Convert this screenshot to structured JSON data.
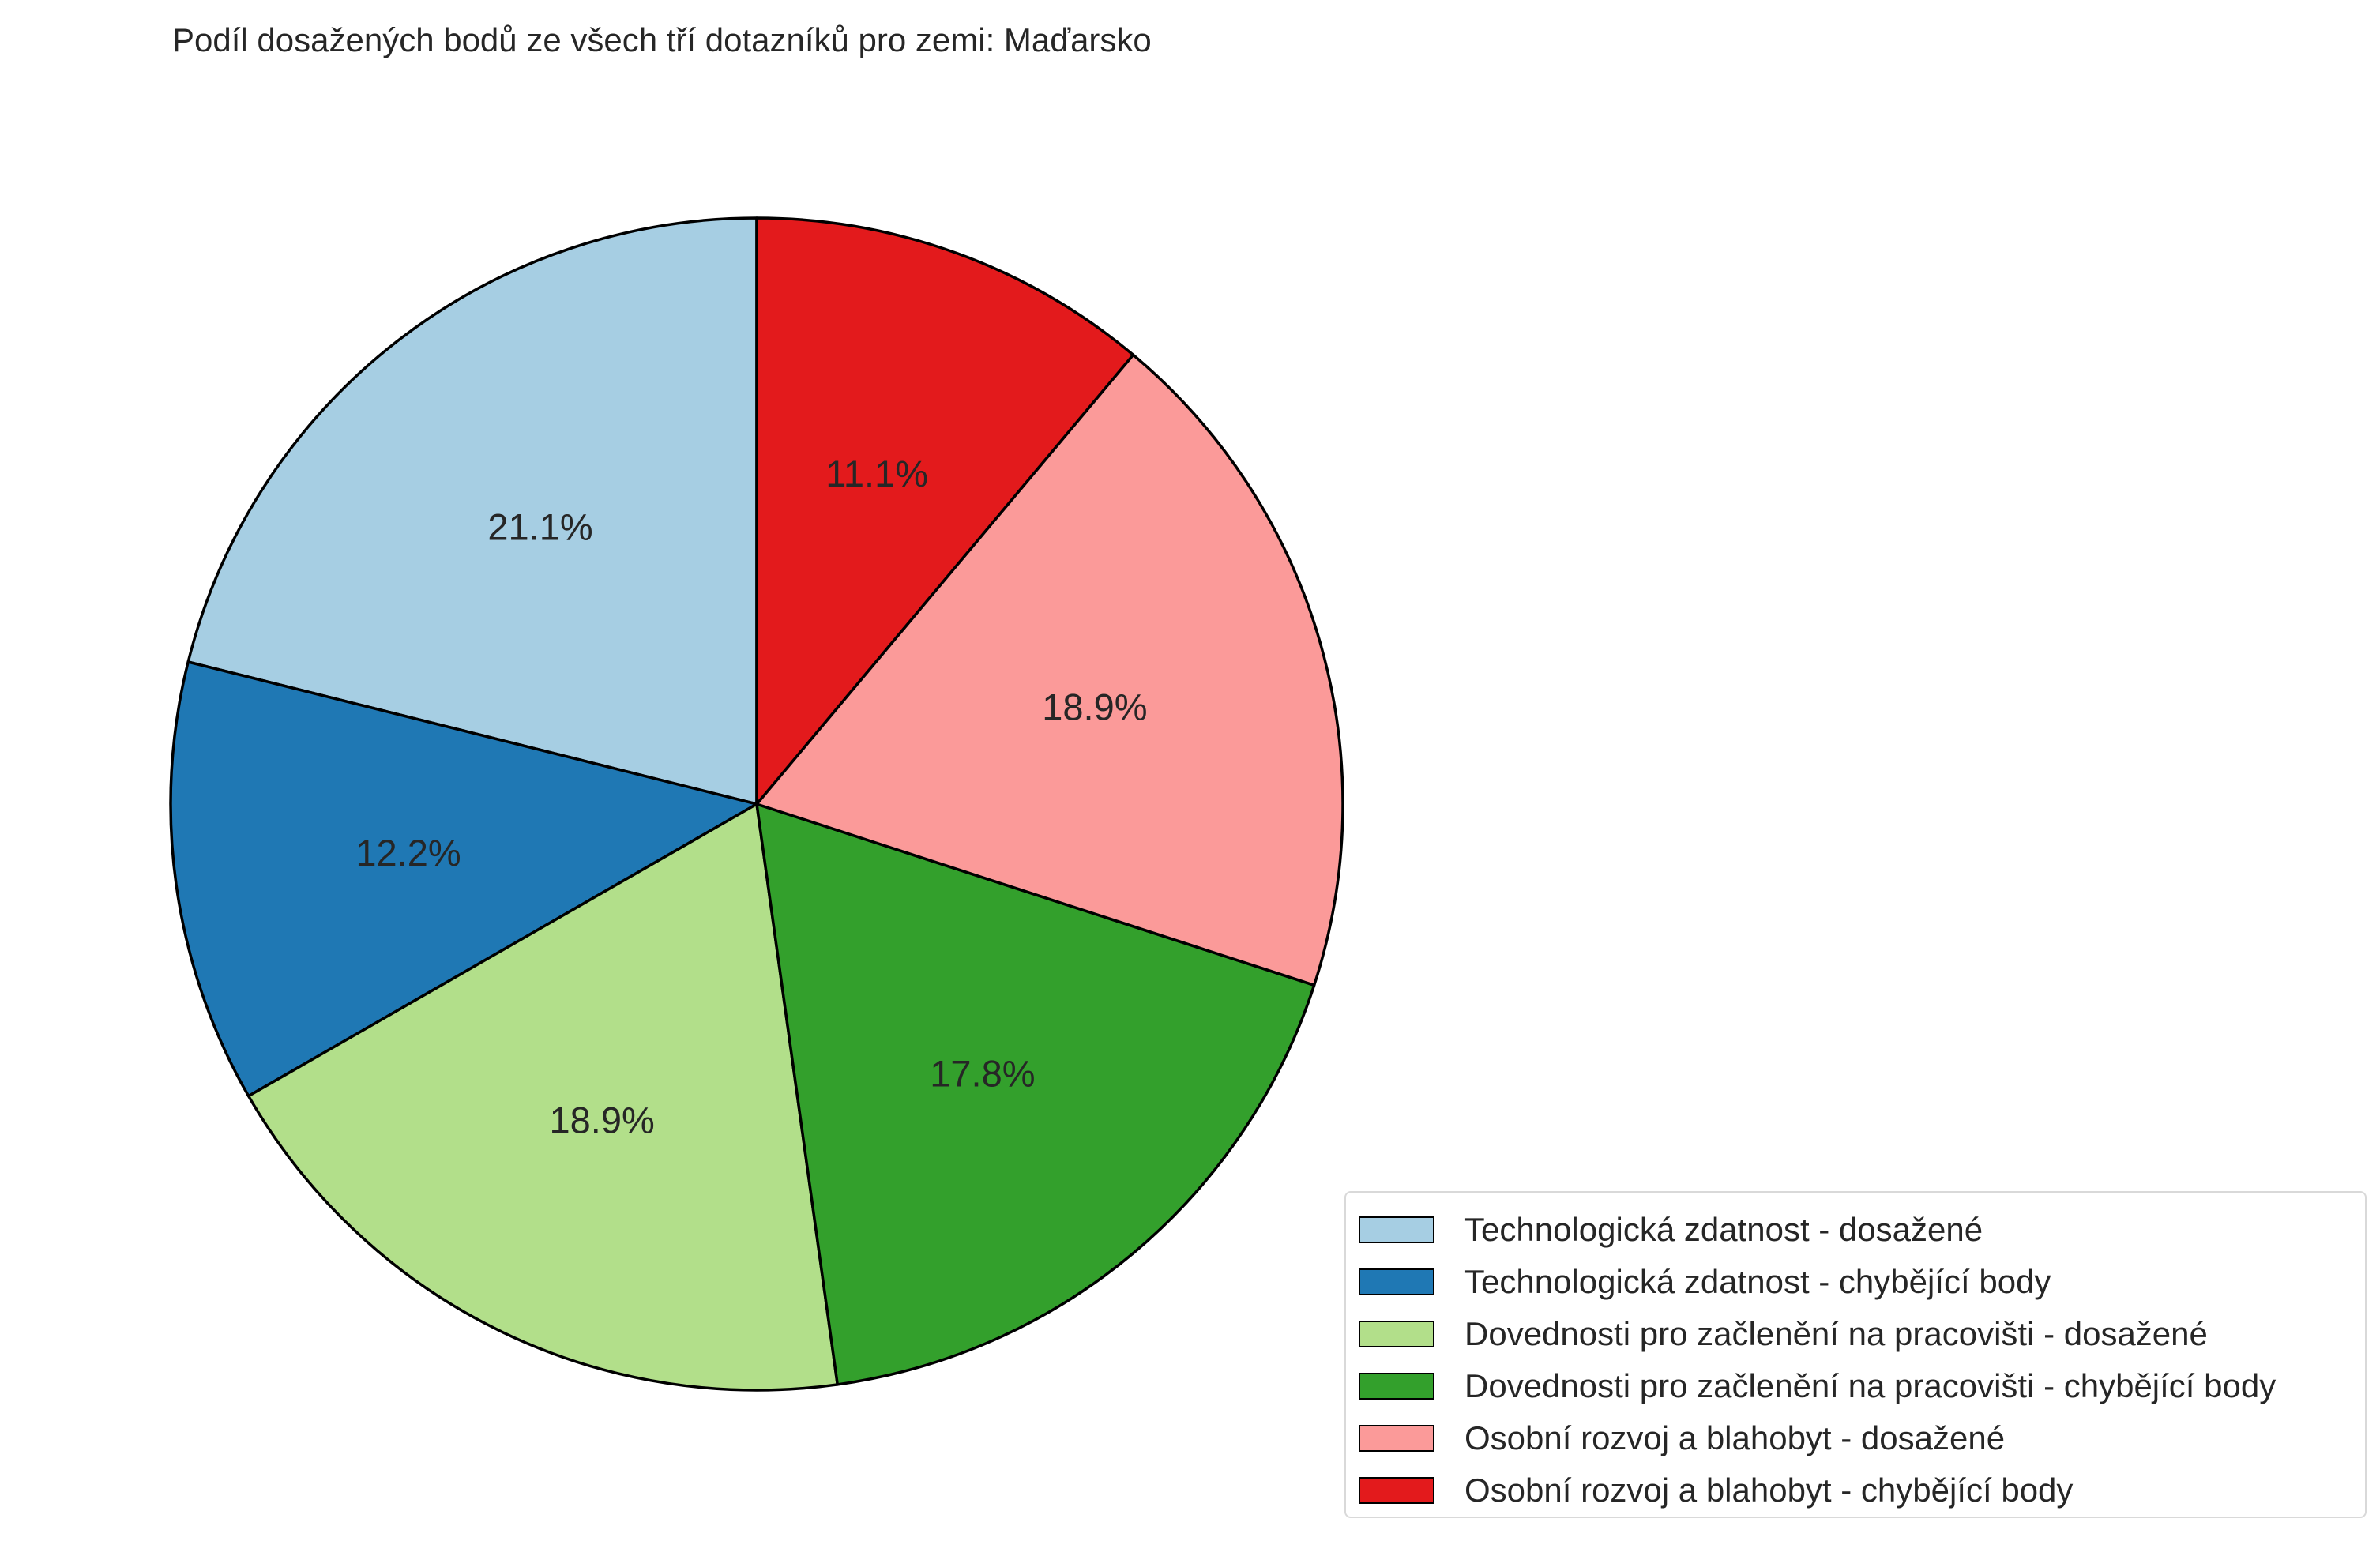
{
  "chart_data": {
    "type": "pie",
    "title": "Podíl dosažených bodů ze všech tří dotazníků pro zemi: Maďarsko",
    "start_angle_deg": 90,
    "direction": "counterclockwise",
    "slices": [
      {
        "label": "Technologická zdatnost - dosažené",
        "value": 21.1,
        "value_label": "21.1%",
        "color": "#a6cee3"
      },
      {
        "label": "Technologická zdatnost - chybějící body",
        "value": 12.2,
        "value_label": "12.2%",
        "color": "#1f78b4"
      },
      {
        "label": "Dovednosti pro začlenění na pracovišti - dosažené",
        "value": 18.9,
        "value_label": "18.9%",
        "color": "#b2df8a"
      },
      {
        "label": "Dovednosti pro začlenění na pracovišti - chybějící body",
        "value": 17.8,
        "value_label": "17.8%",
        "color": "#33a02c"
      },
      {
        "label": "Osobní rozvoj a blahobyt - dosažené",
        "value": 18.9,
        "value_label": "18.9%",
        "color": "#fb9a99"
      },
      {
        "label": "Osobní rozvoj a blahobyt - chybějící body",
        "value": 11.1,
        "value_label": "11.1%",
        "color": "#e31a1c"
      }
    ],
    "legend_position": "lower-right",
    "edge_color": "#000000"
  }
}
